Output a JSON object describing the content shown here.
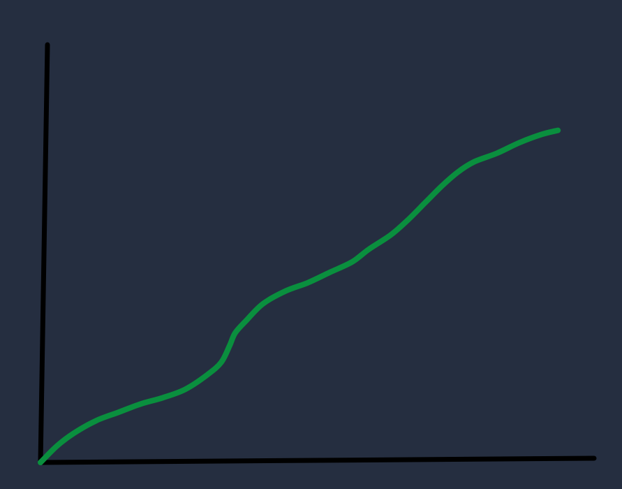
{
  "chart_data": {
    "type": "line",
    "title": "",
    "xlabel": "",
    "ylabel": "",
    "grid": false,
    "legend": "none",
    "xlim": [
      0,
      100
    ],
    "ylim": [
      0,
      100
    ],
    "series": [
      {
        "color": "#0a8f3e",
        "points": [
          [
            0,
            0
          ],
          [
            3,
            4
          ],
          [
            6,
            7
          ],
          [
            10,
            10
          ],
          [
            14,
            12
          ],
          [
            18,
            14
          ],
          [
            22,
            15.5
          ],
          [
            26,
            17.5
          ],
          [
            30,
            21
          ],
          [
            32.5,
            24
          ],
          [
            34,
            28
          ],
          [
            35,
            31
          ],
          [
            37,
            34
          ],
          [
            40,
            38
          ],
          [
            44,
            41
          ],
          [
            48,
            43
          ],
          [
            52,
            45.5
          ],
          [
            56,
            48
          ],
          [
            59,
            51
          ],
          [
            63,
            54.5
          ],
          [
            66,
            58
          ],
          [
            69,
            62
          ],
          [
            72,
            66
          ],
          [
            75,
            69.5
          ],
          [
            78,
            72
          ],
          [
            82,
            74
          ],
          [
            86,
            76.5
          ],
          [
            90,
            78.5
          ],
          [
            93,
            79.5
          ]
        ]
      }
    ],
    "axis_color": "#000000",
    "background": "#252e40"
  }
}
